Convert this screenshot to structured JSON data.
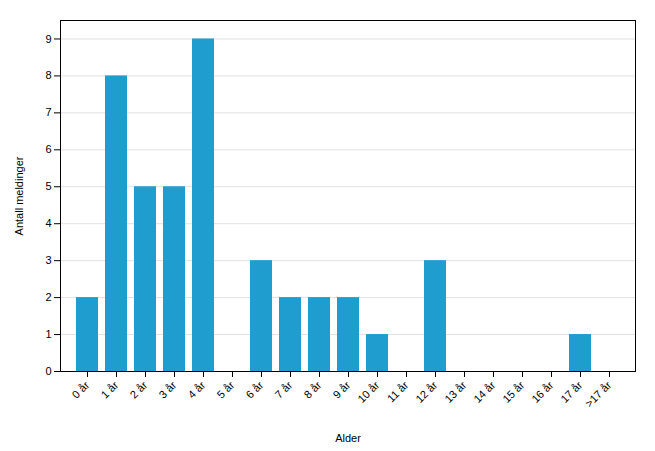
{
  "chart_data": {
    "type": "bar",
    "categories": [
      "0 år",
      "1 år",
      "2 år",
      "3 år",
      "4 år",
      "5 år",
      "6 år",
      "7 år",
      "8 år",
      "9 år",
      "10 år",
      "11 år",
      "12 år",
      "13 år",
      "14 år",
      "15 år",
      "16 år",
      "17 år",
      ">17 år"
    ],
    "values": [
      2,
      8,
      5,
      5,
      9,
      0,
      3,
      2,
      2,
      2,
      1,
      0,
      3,
      0,
      0,
      0,
      0,
      1,
      0
    ],
    "color": "#1e9dce",
    "xlabel": "Alder",
    "ylabel": "Antall meldinger",
    "ylim": [
      0,
      9.5
    ],
    "yticks": [
      0,
      1,
      2,
      3,
      4,
      5,
      6,
      7,
      8,
      9
    ],
    "grid": true
  }
}
